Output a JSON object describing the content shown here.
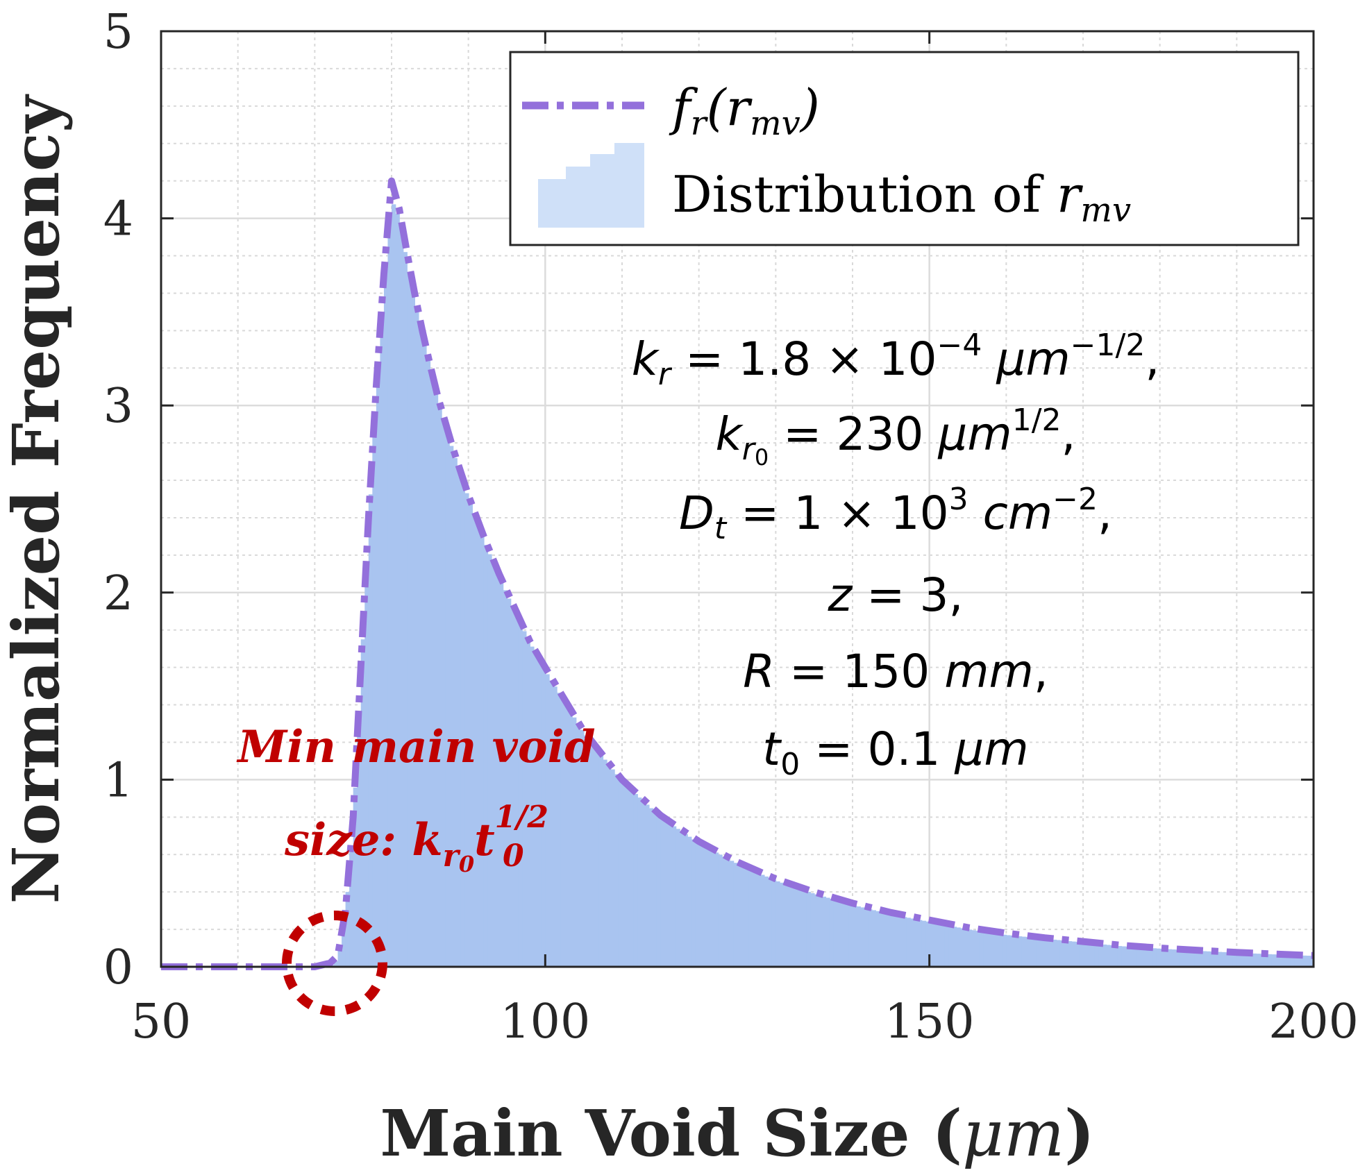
{
  "chart_data": {
    "type": "bar",
    "xlabel": "Main Void Size",
    "xlabel_unit": "μm",
    "ylabel": "Normalized Frequency",
    "xlim": [
      50,
      200
    ],
    "ylim": [
      0,
      5
    ],
    "xticks": [
      "50",
      "100",
      "150",
      "200"
    ],
    "yticks": [
      "0",
      "1",
      "2",
      "3",
      "4",
      "5"
    ],
    "grid": true,
    "minor_grid": true,
    "legend_position": "top-right",
    "colors": {
      "curve": "#9370db",
      "histogram": "#a9c4f0",
      "legend_patch": "#cfe0f8",
      "annotation": "#c00000",
      "axis": "#262626"
    },
    "series": [
      {
        "name": "f_r(r_mv)",
        "style": "dash-dot",
        "x": [
          50,
          60,
          65,
          70,
          72,
          73,
          74,
          75,
          76,
          77,
          78,
          79,
          80,
          81,
          82,
          83,
          84,
          85,
          86,
          88,
          90,
          92,
          94,
          96,
          98,
          100,
          105,
          110,
          115,
          120,
          125,
          130,
          135,
          140,
          145,
          150,
          155,
          160,
          165,
          170,
          175,
          180,
          185,
          190,
          195,
          200
        ],
        "y": [
          0,
          0,
          0,
          0,
          0.02,
          0.06,
          0.3,
          0.8,
          1.6,
          2.4,
          3.1,
          3.7,
          4.2,
          4.05,
          3.82,
          3.6,
          3.4,
          3.22,
          3.05,
          2.77,
          2.52,
          2.3,
          2.1,
          1.92,
          1.74,
          1.6,
          1.26,
          1.0,
          0.81,
          0.67,
          0.56,
          0.47,
          0.4,
          0.34,
          0.29,
          0.25,
          0.21,
          0.18,
          0.155,
          0.135,
          0.115,
          0.1,
          0.088,
          0.077,
          0.068,
          0.06
        ]
      },
      {
        "name": "Distribution of r_mv",
        "style": "histogram",
        "x": [
          50,
          60,
          65,
          70,
          72,
          73,
          74,
          75,
          76,
          77,
          78,
          79,
          80,
          81,
          82,
          83,
          84,
          85,
          86,
          88,
          90,
          92,
          94,
          96,
          98,
          100,
          105,
          110,
          115,
          120,
          125,
          130,
          135,
          140,
          145,
          150,
          155,
          160,
          165,
          170,
          175,
          180,
          185,
          190,
          195,
          200
        ],
        "y": [
          0,
          0,
          0,
          0,
          0,
          0.04,
          0.28,
          0.76,
          1.55,
          2.35,
          3.05,
          3.62,
          4.1,
          4.0,
          3.76,
          3.55,
          3.36,
          3.2,
          3.02,
          2.75,
          2.5,
          2.28,
          2.08,
          1.9,
          1.73,
          1.58,
          1.25,
          0.99,
          0.8,
          0.66,
          0.55,
          0.46,
          0.39,
          0.33,
          0.28,
          0.24,
          0.2,
          0.17,
          0.15,
          0.13,
          0.11,
          0.097,
          0.085,
          0.075,
          0.066,
          0.058
        ]
      }
    ],
    "legend": {
      "curve_label": "fr(rmv)",
      "hist_label": "Distribution of rmv"
    },
    "parameters": [
      "kr = 1.8 × 10−4 μm−1/2,",
      "kr0 = 230 μm1/2,",
      "Dt = 1 × 103 cm−2,",
      "z = 3,",
      "R = 150 mm,",
      "t0 = 0.1 μm"
    ],
    "annotation": {
      "line1": "Min main void",
      "line2": "size: kr0t01/2",
      "x": 72,
      "y": 0.02
    }
  }
}
